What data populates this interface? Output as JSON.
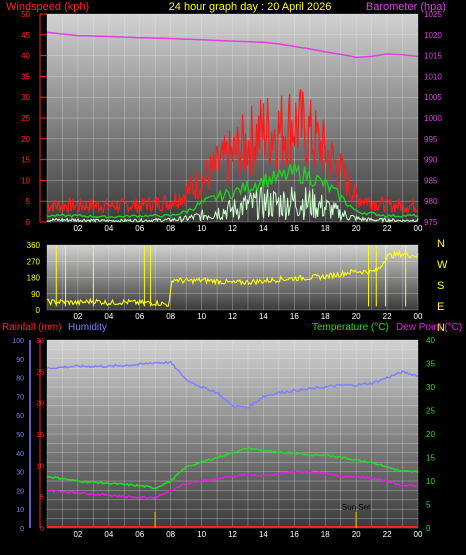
{
  "header": {
    "left_label": "Windspeed (kph)",
    "center_title": "24 hour graph day : 20 April 2026",
    "right_label": "Barometer (hpa)"
  },
  "bottom_header": {
    "rainfall_label": "Rainfall (mm)",
    "humidity_label": "Humidity",
    "temperature_label": "Temperature (°C)",
    "dewpoint_label": "Dew Point (°C)"
  },
  "colors": {
    "windspeed": "#ff1a1a",
    "gust_avg": "#1fd01f",
    "wind_lull": "#ccffcc",
    "barometer": "#e040e0",
    "direction": "#ffff00",
    "rainfall": "#ff2020",
    "humidity": "#8080ff",
    "temperature": "#20e020",
    "dewpoint": "#e020e0",
    "sun": "#c8a000",
    "plot_top": "#cfcfcf",
    "plot_bottom": "#3a3a3a",
    "grid": "#e8e8e8"
  },
  "chart_data": [
    {
      "type": "line",
      "panel": "wind-barometer",
      "x_ticks": [
        "02",
        "04",
        "06",
        "08",
        "10",
        "12",
        "14",
        "16",
        "18",
        "20",
        "22",
        "00"
      ],
      "left_axis": {
        "label": "Windspeed (kph)",
        "range": [
          0,
          50
        ],
        "ticks": [
          0,
          5,
          10,
          15,
          20,
          25,
          30,
          35,
          40,
          45,
          50
        ]
      },
      "right_axis": {
        "label": "Barometer (hpa)",
        "range": [
          975,
          1025
        ],
        "ticks": [
          975,
          980,
          985,
          990,
          995,
          1000,
          1005,
          1010,
          1015,
          1020,
          1025
        ]
      },
      "barometer": {
        "x": [
          0,
          2,
          4,
          6,
          8,
          10,
          12,
          14,
          15,
          16,
          17,
          18,
          19,
          20,
          21,
          22,
          23,
          24
        ],
        "y": [
          1020.6,
          1019.8,
          1019.6,
          1019.3,
          1019.1,
          1018.8,
          1018.5,
          1018.2,
          1017.8,
          1017.2,
          1016.6,
          1015.9,
          1015.3,
          1014.6,
          1014.8,
          1015.4,
          1015.2,
          1014.8
        ]
      },
      "windspeed_envelope": {
        "x": [
          0,
          2,
          4,
          6,
          8,
          9,
          10,
          11,
          12,
          13,
          14,
          15,
          16,
          17,
          18,
          19,
          20,
          21,
          22,
          23,
          24
        ],
        "y": [
          4,
          4,
          4,
          4,
          5,
          7,
          10,
          13,
          16,
          19,
          22,
          22,
          24,
          21,
          17,
          12,
          6,
          5,
          4,
          4,
          4
        ]
      },
      "gust_average": {
        "x": [
          0,
          2,
          4,
          6,
          8,
          9,
          10,
          11,
          12,
          13,
          14,
          15,
          16,
          17,
          18,
          19,
          20,
          21,
          22,
          23,
          24
        ],
        "y": [
          1.5,
          1.5,
          1.2,
          1.5,
          1.5,
          2.5,
          4.5,
          6,
          7,
          8.5,
          10,
          10.5,
          12,
          11,
          9,
          6,
          2.5,
          2,
          1.5,
          1.5,
          1.5
        ]
      },
      "wind_lull": {
        "x": [
          0,
          2,
          4,
          6,
          8,
          9,
          10,
          11,
          12,
          13,
          14,
          15,
          16,
          17,
          18,
          19,
          20,
          21,
          22,
          23,
          24
        ],
        "y": [
          0.5,
          0.5,
          0.3,
          0.4,
          0.5,
          0.8,
          1.5,
          2.5,
          3,
          4,
          4.5,
          4.5,
          5,
          4.5,
          3.5,
          2,
          0.8,
          0.5,
          0.5,
          0.3,
          0.5
        ]
      }
    },
    {
      "type": "line",
      "panel": "wind-direction",
      "x_ticks": [
        "02",
        "04",
        "06",
        "08",
        "10",
        "12",
        "14",
        "16",
        "18",
        "20",
        "22",
        "00"
      ],
      "left_axis": {
        "range": [
          0,
          360
        ],
        "ticks": [
          0,
          90,
          180,
          270,
          360
        ]
      },
      "right_labels": [
        "N",
        "W",
        "S",
        "E",
        "N"
      ],
      "direction": {
        "x": [
          0,
          1,
          2,
          3,
          4,
          5,
          6,
          7,
          7.9,
          8.1,
          9,
          10,
          11,
          12,
          13,
          14,
          15,
          16,
          17,
          18,
          19,
          20,
          21,
          21.5,
          22,
          23,
          24
        ],
        "y": [
          45,
          45,
          40,
          50,
          40,
          45,
          40,
          40,
          30,
          170,
          160,
          165,
          160,
          150,
          155,
          160,
          170,
          175,
          180,
          185,
          200,
          215,
          210,
          230,
          300,
          310,
          300
        ]
      }
    },
    {
      "type": "line",
      "panel": "temperature-humidity-rain",
      "x_ticks": [
        "02",
        "04",
        "06",
        "08",
        "10",
        "12",
        "14",
        "16",
        "18",
        "20",
        "22",
        "00"
      ],
      "humidity_axis": {
        "label": "Humidity",
        "range": [
          0,
          100
        ],
        "ticks": [
          0,
          10,
          20,
          30,
          40,
          50,
          60,
          70,
          80,
          90,
          100
        ]
      },
      "rainfall_axis": {
        "label": "Rainfall (mm)",
        "range": [
          0,
          30
        ],
        "ticks": [
          0,
          5,
          10,
          15,
          20,
          25,
          30
        ]
      },
      "temperature_axis": {
        "label": "Temperature (°C)",
        "range": [
          0,
          40
        ],
        "ticks": [
          0,
          5,
          10,
          15,
          20,
          25,
          30,
          35,
          40
        ]
      },
      "annotation": "Sun Set",
      "humidity": {
        "x": [
          0,
          2,
          4,
          6,
          7,
          8,
          9,
          10,
          11,
          12,
          13,
          14,
          15,
          16,
          17,
          18,
          19,
          20,
          21,
          22,
          23,
          24
        ],
        "y": [
          85,
          86,
          86,
          87,
          88,
          88,
          79,
          75,
          72,
          65,
          64,
          70,
          72,
          73,
          74,
          75,
          76,
          76,
          77,
          80,
          83,
          81
        ]
      },
      "temperature": {
        "x": [
          0,
          2,
          4,
          6,
          7,
          8,
          9,
          10,
          11,
          12,
          13,
          14,
          15,
          16,
          17,
          18,
          19,
          20,
          21,
          22,
          23,
          24
        ],
        "y": [
          11,
          10,
          9.5,
          9,
          8.5,
          10,
          13,
          14,
          15,
          16,
          17,
          16.5,
          16,
          16,
          15.5,
          15.5,
          15,
          14.5,
          14,
          13,
          12,
          12
        ]
      },
      "dewpoint": {
        "x": [
          0,
          2,
          4,
          6,
          7,
          8,
          9,
          10,
          11,
          12,
          13,
          14,
          15,
          16,
          17,
          18,
          19,
          20,
          21,
          22,
          23,
          24
        ],
        "y": [
          8,
          7.5,
          7,
          6.5,
          6.5,
          8,
          9.5,
          10,
          10.5,
          11,
          11.5,
          11,
          11.5,
          12,
          12,
          11.5,
          11,
          11,
          10.5,
          10,
          9,
          9
        ]
      },
      "rainfall": {
        "x": [
          0,
          24
        ],
        "y": [
          0,
          0
        ]
      },
      "sun_markers": [
        7,
        20
      ]
    }
  ]
}
